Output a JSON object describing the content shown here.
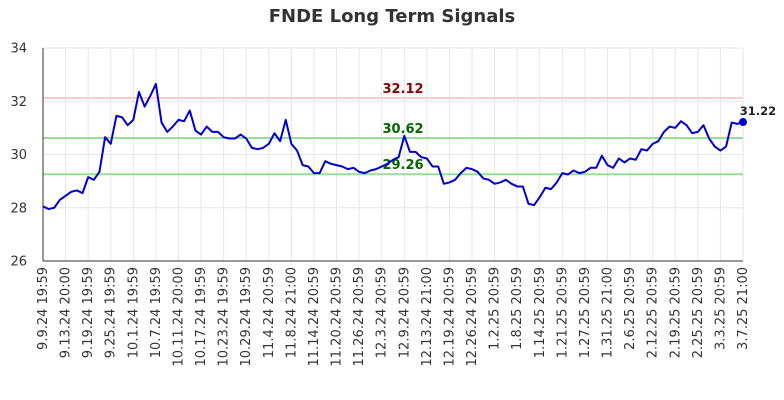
{
  "chart_data": {
    "type": "line",
    "title": "FNDE Long Term Signals",
    "xlabel": "",
    "ylabel": "",
    "ylim": [
      26,
      34
    ],
    "yticks": [
      26,
      28,
      30,
      32,
      34
    ],
    "grid": true,
    "xtick_labels": [
      "9.9.24 19:59",
      "9.13.24 20:00",
      "9.19.24 19:59",
      "9.25.24 19:59",
      "10.1.24 19:59",
      "10.7.24 19:59",
      "10.11.24 20:00",
      "10.17.24 19:59",
      "10.23.24 19:59",
      "10.29.24 19:59",
      "11.4.24 20:59",
      "11.8.24 21:00",
      "11.14.24 20:59",
      "11.20.24 20:59",
      "11.26.24 20:59",
      "12.3.24 20:59",
      "12.9.24 20:59",
      "12.13.24 21:00",
      "12.19.24 20:59",
      "12.26.24 20:59",
      "1.2.25 20:59",
      "1.8.25 20:59",
      "1.14.25 20:59",
      "1.21.25 20:59",
      "1.27.25 20:59",
      "1.31.25 21:00",
      "2.6.25 20:59",
      "2.12.25 20:59",
      "2.19.25 20:59",
      "2.25.25 20:59",
      "3.3.25 20:59",
      "3.7.25 21:00"
    ],
    "xtick_index": [
      0,
      4,
      8,
      12,
      16,
      20,
      24,
      28,
      32,
      36,
      40,
      44,
      48,
      52,
      56,
      60,
      64,
      68,
      72,
      76,
      80,
      84,
      88,
      92,
      96,
      100,
      104,
      108,
      112,
      116,
      120,
      124
    ],
    "series": [
      {
        "name": "",
        "color": "#0000cc",
        "values": [
          28.05,
          27.95,
          28.0,
          28.3,
          28.45,
          28.6,
          28.65,
          28.55,
          29.15,
          29.05,
          29.35,
          30.65,
          30.4,
          31.45,
          31.4,
          31.1,
          31.3,
          32.35,
          31.8,
          32.2,
          32.65,
          31.2,
          30.85,
          31.05,
          31.3,
          31.25,
          31.65,
          30.9,
          30.75,
          31.05,
          30.85,
          30.85,
          30.65,
          30.6,
          30.6,
          30.75,
          30.6,
          30.25,
          30.2,
          30.25,
          30.4,
          30.8,
          30.5,
          31.3,
          30.4,
          30.15,
          29.6,
          29.55,
          29.3,
          29.3,
          29.75,
          29.65,
          29.6,
          29.55,
          29.45,
          29.5,
          29.35,
          29.3,
          29.4,
          29.45,
          29.55,
          29.65,
          29.8,
          29.9,
          30.7,
          30.1,
          30.1,
          29.9,
          29.85,
          29.55,
          29.55,
          28.9,
          28.95,
          29.05,
          29.3,
          29.5,
          29.45,
          29.35,
          29.1,
          29.05,
          28.9,
          28.95,
          29.05,
          28.9,
          28.8,
          28.8,
          28.15,
          28.1,
          28.4,
          28.75,
          28.7,
          28.95,
          29.3,
          29.25,
          29.4,
          29.3,
          29.35,
          29.5,
          29.5,
          29.95,
          29.6,
          29.5,
          29.85,
          29.7,
          29.85,
          29.8,
          30.2,
          30.15,
          30.4,
          30.5,
          30.85,
          31.05,
          31.0,
          31.25,
          31.1,
          30.8,
          30.85,
          31.1,
          30.6,
          30.3,
          30.15,
          30.3,
          31.2,
          31.15,
          31.22
        ]
      }
    ],
    "reference_lines": [
      {
        "value": 32.12,
        "label": "32.12",
        "line_color": "#ffcccc",
        "label_color": "#8b0000"
      },
      {
        "value": 30.62,
        "label": "30.62",
        "line_color": "#99dd99",
        "label_color": "#006400"
      },
      {
        "value": 29.26,
        "label": "29.26",
        "line_color": "#99dd99",
        "label_color": "#006400"
      }
    ],
    "last_value_label": "31.22"
  }
}
